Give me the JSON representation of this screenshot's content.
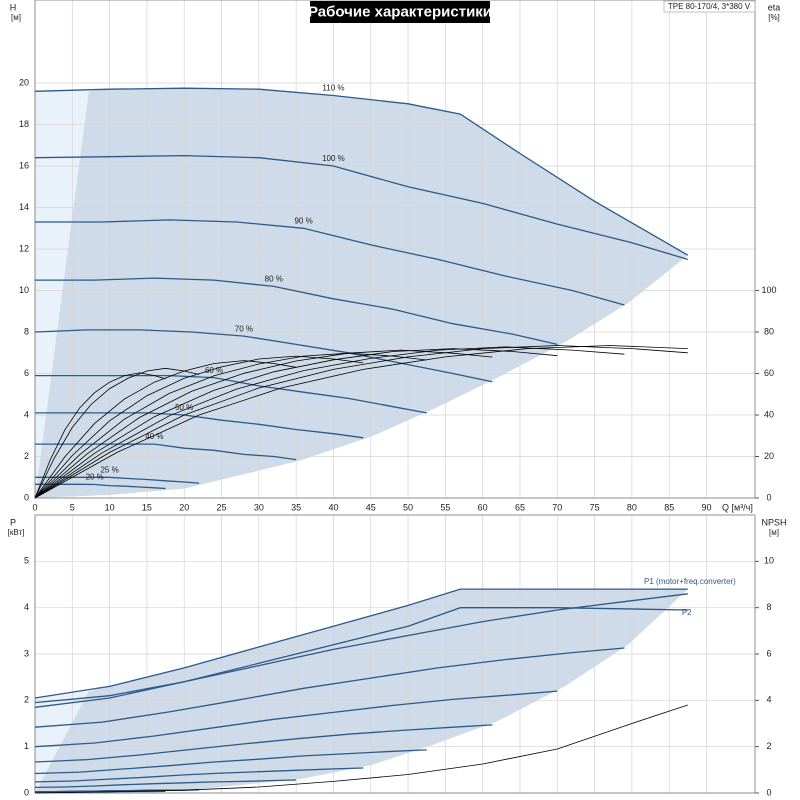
{
  "title": "Рабочие характеристики",
  "model": "TPE 80-170/4, 3*380 V",
  "chart_data": [
    {
      "type": "line",
      "xlabel": "Q [м³/ч]",
      "ylabel": "H",
      "yunit": "[м]",
      "y2label": "eta",
      "y2unit": "[%]",
      "xlim": [
        0,
        96.5
      ],
      "xticks": [
        0,
        5,
        10,
        15,
        20,
        25,
        30,
        35,
        40,
        45,
        50,
        55,
        60,
        65,
        70,
        75,
        80,
        85,
        90
      ],
      "ylim": [
        0,
        24
      ],
      "yticks": [
        0,
        2,
        4,
        6,
        8,
        10,
        12,
        14,
        16,
        18,
        20
      ],
      "y2lim": [
        0,
        240
      ],
      "y2ticks": [
        0,
        20,
        40,
        60,
        80,
        100
      ],
      "grid": true,
      "envelope": {
        "color": "#cfdbe8",
        "x": [
          0,
          7.2,
          10,
          20,
          30,
          40,
          50,
          57,
          65,
          75,
          87.5,
          79.5,
          71,
          62,
          53.5,
          45,
          35.5,
          27.5,
          20,
          10
        ],
        "values": [
          0,
          19.6,
          19.7,
          19.75,
          19.7,
          19.4,
          19.0,
          18.5,
          16.6,
          14.3,
          11.7,
          9.4,
          7.5,
          5.8,
          4.3,
          2.95,
          1.8,
          1.1,
          0.45,
          0.15
        ]
      },
      "series": [
        {
          "name": "110 %",
          "color": "#2a5a8a",
          "x": [
            0,
            10,
            20,
            30,
            40,
            50,
            57,
            65,
            75,
            87.5
          ],
          "values": [
            19.6,
            19.7,
            19.75,
            19.7,
            19.4,
            19.0,
            18.5,
            16.6,
            14.3,
            11.7
          ]
        },
        {
          "name": "100 %",
          "color": "#2a5a8a",
          "x": [
            0,
            10,
            20,
            30,
            40,
            50,
            60,
            70,
            80,
            87.5
          ],
          "values": [
            16.4,
            16.45,
            16.5,
            16.4,
            16.0,
            15.0,
            14.2,
            13.2,
            12.3,
            11.5
          ]
        },
        {
          "name": "90 %",
          "color": "#2a5a8a",
          "x": [
            0,
            9,
            18,
            27,
            36,
            45,
            54,
            63,
            72,
            79
          ],
          "values": [
            13.3,
            13.3,
            13.4,
            13.3,
            13.0,
            12.2,
            11.5,
            10.7,
            10.0,
            9.3
          ]
        },
        {
          "name": "80 %",
          "color": "#2a5a8a",
          "x": [
            0,
            8,
            16,
            24,
            32,
            40,
            48,
            56,
            64,
            70
          ],
          "values": [
            10.5,
            10.5,
            10.6,
            10.5,
            10.2,
            9.6,
            9.1,
            8.4,
            7.9,
            7.4
          ]
        },
        {
          "name": "70 %",
          "color": "#2a5a8a",
          "x": [
            0,
            7,
            14,
            21,
            28,
            35,
            42,
            49,
            56,
            61.3
          ],
          "values": [
            8.0,
            8.1,
            8.1,
            8.0,
            7.8,
            7.4,
            7.0,
            6.5,
            6.0,
            5.6
          ]
        },
        {
          "name": "60 %",
          "color": "#2a5a8a",
          "x": [
            0,
            6,
            12,
            18,
            24,
            30,
            36,
            42,
            48,
            52.5
          ],
          "values": [
            5.9,
            5.9,
            5.9,
            5.9,
            5.8,
            5.4,
            5.1,
            4.8,
            4.4,
            4.1
          ]
        },
        {
          "name": "50 %",
          "color": "#2a5a8a",
          "x": [
            0,
            5,
            10,
            15,
            20,
            25,
            30,
            35,
            40,
            44
          ],
          "values": [
            4.1,
            4.1,
            4.1,
            4.1,
            4.0,
            3.75,
            3.55,
            3.3,
            3.1,
            2.9
          ]
        },
        {
          "name": "40 %",
          "color": "#2a5a8a",
          "x": [
            0,
            4,
            8,
            12,
            16,
            20,
            24,
            28,
            32,
            35
          ],
          "values": [
            2.6,
            2.6,
            2.6,
            2.6,
            2.6,
            2.4,
            2.3,
            2.1,
            2.0,
            1.85
          ]
        },
        {
          "name": "25 %",
          "color": "#2a5a8a",
          "x": [
            0,
            2.5,
            5,
            7.5,
            10,
            12.5,
            15,
            17.5,
            20,
            22
          ],
          "values": [
            1.0,
            1.0,
            1.0,
            1.0,
            1.0,
            0.94,
            0.89,
            0.83,
            0.77,
            0.72
          ]
        },
        {
          "name": "20 %",
          "color": "#2a5a8a",
          "x": [
            0,
            2,
            4,
            6,
            8,
            10,
            12,
            14,
            16,
            17.5
          ],
          "values": [
            0.66,
            0.66,
            0.66,
            0.66,
            0.65,
            0.6,
            0.57,
            0.53,
            0.49,
            0.46
          ]
        },
        {
          "axis": "y2",
          "color": "#000000",
          "x": [
            0,
            11,
            22,
            33,
            44,
            55,
            66,
            77,
            87.5
          ],
          "values": [
            0,
            22,
            40,
            53,
            62,
            68,
            72,
            73.5,
            72
          ]
        },
        {
          "axis": "y2",
          "color": "#000000",
          "x": [
            0,
            10,
            20,
            30,
            40,
            50,
            60,
            70,
            80,
            87.5
          ],
          "values": [
            0,
            22,
            40,
            53,
            62,
            68,
            72,
            73.5,
            72,
            70
          ]
        },
        {
          "axis": "y2",
          "color": "#000000",
          "x": [
            0,
            9,
            18,
            27,
            36,
            45,
            54,
            63,
            72,
            79
          ],
          "values": [
            0,
            21.8,
            39.6,
            52.5,
            61.4,
            67.3,
            71.3,
            72.8,
            71.3,
            69.3
          ]
        },
        {
          "axis": "y2",
          "color": "#000000",
          "x": [
            0,
            8,
            16,
            24,
            32,
            40,
            48,
            56,
            64,
            70
          ],
          "values": [
            0,
            21.6,
            39.2,
            51.9,
            60.8,
            66.6,
            70.6,
            72,
            70.6,
            68.6
          ]
        },
        {
          "axis": "y2",
          "color": "#000000",
          "x": [
            0,
            7,
            14,
            21,
            28,
            35,
            42,
            49,
            56,
            61.3
          ],
          "values": [
            0,
            21.3,
            38.8,
            51.4,
            60.1,
            66,
            69.8,
            71.3,
            69.8,
            67.9
          ]
        },
        {
          "axis": "y2",
          "color": "#000000",
          "x": [
            0,
            6,
            12,
            18,
            24,
            30,
            36,
            42,
            48,
            52.5
          ],
          "values": [
            0,
            20.9,
            38,
            50.4,
            58.9,
            64.6,
            68.4,
            69.8,
            68.4,
            66.5
          ]
        },
        {
          "axis": "y2",
          "color": "#000000",
          "x": [
            0,
            5,
            10,
            15,
            20,
            25,
            30,
            35,
            40,
            44
          ],
          "values": [
            0,
            20.5,
            37.2,
            49.3,
            57.7,
            63.2,
            67,
            68.4,
            67,
            65.1
          ]
        },
        {
          "axis": "y2",
          "color": "#000000",
          "x": [
            0,
            4,
            8,
            12,
            16,
            20,
            24,
            28,
            32,
            35
          ],
          "values": [
            0,
            19.8,
            36,
            47.7,
            55.8,
            61.2,
            64.8,
            66.2,
            64.8,
            63
          ]
        },
        {
          "axis": "y2",
          "color": "#000000",
          "x": [
            0,
            2.5,
            5,
            7.5,
            10,
            12.5,
            15,
            17.5,
            20,
            22
          ],
          "values": [
            0,
            18.7,
            34,
            45,
            52.7,
            57.8,
            61.2,
            62.5,
            61.2,
            59.5
          ]
        },
        {
          "axis": "y2",
          "color": "#000000",
          "x": [
            0,
            2,
            4,
            6,
            8,
            10,
            12,
            14,
            16,
            17.5
          ],
          "values": [
            0,
            18,
            32.8,
            43.5,
            50.8,
            55.8,
            59,
            60.3,
            59,
            57.4
          ]
        }
      ]
    },
    {
      "type": "line",
      "ylabel": "P",
      "yunit": "[кВт]",
      "y2label": "NPSH",
      "y2unit": "[м]",
      "xlim": [
        0,
        96.5
      ],
      "xticks": [
        0,
        5,
        10,
        15,
        20,
        25,
        30,
        35,
        40,
        45,
        50,
        55,
        60,
        65,
        70,
        75,
        80,
        85,
        90
      ],
      "ylim": [
        0,
        6
      ],
      "yticks": [
        0,
        1,
        2,
        3,
        4,
        5
      ],
      "y2lim": [
        0,
        12
      ],
      "y2ticks": [
        0,
        2,
        4,
        6,
        8,
        10
      ],
      "grid": true,
      "envelope": {
        "color": "#cfdbe8",
        "x": [
          0,
          7.2,
          10,
          20,
          30,
          40,
          50,
          57,
          70,
          87.5,
          79.5,
          71,
          62,
          53.5,
          45,
          35.5,
          20
        ],
        "values": [
          0,
          2.2,
          2.3,
          2.7,
          3.15,
          3.6,
          4.05,
          4.4,
          4.4,
          4.4,
          3.2,
          2.3,
          1.55,
          1.05,
          0.6,
          0.3,
          0.05
        ]
      },
      "series": [
        {
          "name": "P1 (motor+freq.converter)",
          "color": "#2a5a8a",
          "x": [
            0,
            10,
            20,
            30,
            40,
            50,
            57,
            70,
            87.5
          ],
          "values": [
            2.05,
            2.3,
            2.7,
            3.15,
            3.6,
            4.05,
            4.4,
            4.4,
            4.4
          ]
        },
        {
          "name": "P2",
          "color": "#2a5a8a",
          "x": [
            0,
            10,
            20,
            30,
            40,
            50,
            57,
            70,
            87.5
          ],
          "values": [
            1.85,
            2.05,
            2.4,
            2.8,
            3.2,
            3.6,
            4.0,
            4.0,
            3.95
          ]
        },
        {
          "color": "#2a5a8a",
          "x": [
            0,
            10,
            20,
            30,
            40,
            50,
            60,
            70,
            80,
            87.5
          ],
          "values": [
            1.95,
            2.1,
            2.4,
            2.75,
            3.1,
            3.4,
            3.7,
            3.95,
            4.15,
            4.3
          ]
        },
        {
          "color": "#2a5a8a",
          "x": [
            0,
            9,
            18,
            27,
            36,
            45,
            54,
            63,
            72,
            79
          ],
          "values": [
            1.42,
            1.53,
            1.75,
            2.0,
            2.26,
            2.48,
            2.7,
            2.88,
            3.03,
            3.13
          ]
        },
        {
          "color": "#2a5a8a",
          "x": [
            0,
            8,
            16,
            24,
            32,
            40,
            48,
            56,
            64,
            70
          ],
          "values": [
            1.0,
            1.08,
            1.23,
            1.41,
            1.59,
            1.74,
            1.89,
            2.02,
            2.12,
            2.2
          ]
        },
        {
          "color": "#2a5a8a",
          "x": [
            0,
            7,
            14,
            21,
            28,
            35,
            42,
            49,
            56,
            61.3
          ],
          "values": [
            0.67,
            0.72,
            0.82,
            0.94,
            1.06,
            1.17,
            1.27,
            1.35,
            1.42,
            1.47
          ]
        },
        {
          "color": "#2a5a8a",
          "x": [
            0,
            6,
            12,
            18,
            24,
            30,
            36,
            42,
            48,
            52.5
          ],
          "values": [
            0.42,
            0.45,
            0.52,
            0.59,
            0.67,
            0.73,
            0.8,
            0.85,
            0.9,
            0.93
          ]
        },
        {
          "color": "#2a5a8a",
          "x": [
            0,
            5,
            10,
            15,
            20,
            25,
            30,
            35,
            40,
            44
          ],
          "values": [
            0.24,
            0.26,
            0.3,
            0.34,
            0.39,
            0.43,
            0.46,
            0.49,
            0.52,
            0.54
          ]
        },
        {
          "color": "#2a5a8a",
          "x": [
            0,
            4,
            8,
            12,
            16,
            20,
            24,
            28,
            32,
            35
          ],
          "values": [
            0.12,
            0.13,
            0.15,
            0.18,
            0.2,
            0.22,
            0.24,
            0.25,
            0.27,
            0.28
          ]
        },
        {
          "color": "#2a5a8a",
          "x": [
            0,
            2.5,
            5,
            7.5,
            10,
            12.5,
            15,
            17.5,
            20,
            22
          ],
          "values": [
            0.03,
            0.03,
            0.04,
            0.04,
            0.05,
            0.05,
            0.06,
            0.06,
            0.06,
            0.07
          ]
        },
        {
          "color": "#2a5a8a",
          "x": [
            0,
            2,
            4,
            6,
            8,
            10,
            12,
            14,
            16,
            17.5
          ],
          "values": [
            0.016,
            0.017,
            0.019,
            0.022,
            0.025,
            0.027,
            0.03,
            0.032,
            0.033,
            0.034
          ]
        },
        {
          "axis": "y2",
          "color": "#000000",
          "x": [
            0,
            10,
            20,
            30,
            40,
            50,
            60,
            70,
            80,
            87.5
          ],
          "values": [
            0,
            0.05,
            0.12,
            0.26,
            0.5,
            0.8,
            1.25,
            1.9,
            3.0,
            3.8
          ]
        }
      ]
    }
  ]
}
